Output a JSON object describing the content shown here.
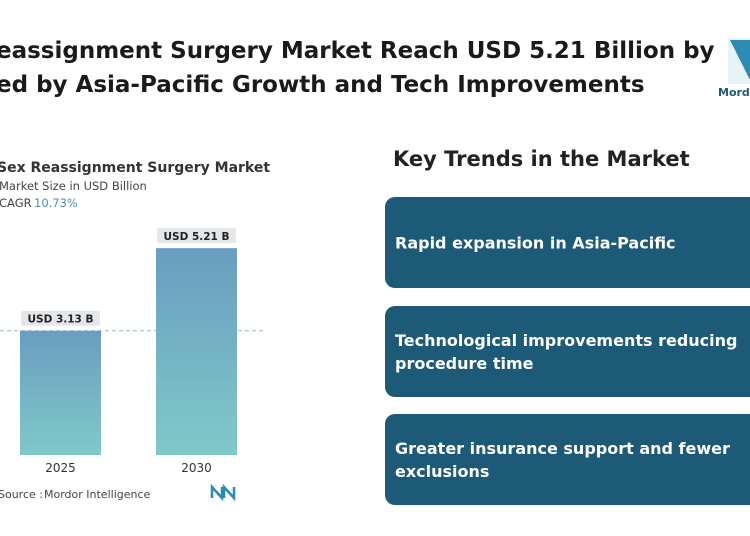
{
  "header": {
    "title_lines": [
      "eassignment Surgery Market Reach USD 5.21 Billion by",
      "ed by Asia-Pacific Growth and Tech Improvements"
    ],
    "logo": "Mordor"
  },
  "chart_data": {
    "type": "bar",
    "title": "Sex Reassignment Surgery Market",
    "subtitle": "Market Size in USD Billion",
    "cagr_label": "CAGR",
    "cagr_value": "10.73%",
    "categories": [
      "2025",
      "2030"
    ],
    "values": [
      3.13,
      5.21
    ],
    "value_labels": [
      "USD 3.13 B",
      "USD 5.21 B"
    ],
    "source_label": "Source :",
    "source": "Mordor Intelligence"
  },
  "key_trends": {
    "heading": "Key Trends in the Market",
    "items": [
      [
        "Rapid expansion in Asia-Pacific"
      ],
      [
        "Technological improvements reducing",
        "procedure time"
      ],
      [
        "Greater insurance support and fewer",
        "exclusions"
      ]
    ]
  }
}
